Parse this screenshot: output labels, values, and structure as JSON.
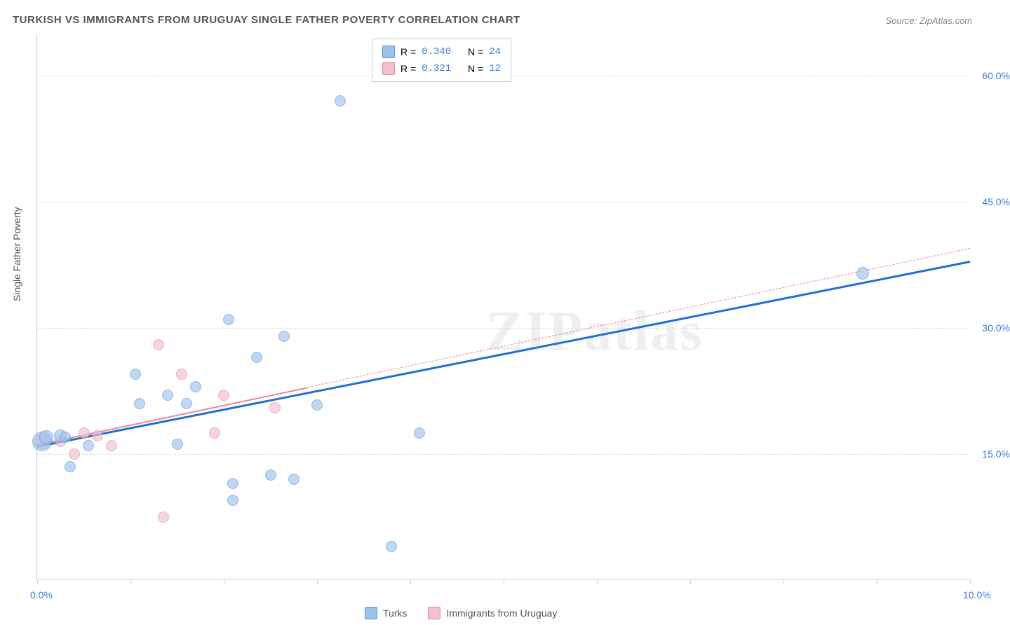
{
  "title": "TURKISH VS IMMIGRANTS FROM URUGUAY SINGLE FATHER POVERTY CORRELATION CHART",
  "source_label": "Source: ZipAtlas.com",
  "ylabel": "Single Father Poverty",
  "watermark_a": "ZIP",
  "watermark_b": "atlas",
  "legend_top": {
    "series1": {
      "r_label": "R =",
      "r": "0.340",
      "n_label": "N =",
      "n": "24"
    },
    "series2": {
      "r_label": "R =",
      "r": "0.321",
      "n_label": "N =",
      "n": "12"
    }
  },
  "legend_bottom": {
    "series1": "Turks",
    "series2": "Immigrants from Uruguay"
  },
  "chart": {
    "type": "scatter",
    "xlim": [
      0.0,
      10.0
    ],
    "ylim": [
      0.0,
      65.0
    ],
    "xticks": [
      0.0,
      1.0,
      2.0,
      3.0,
      4.0,
      5.0,
      6.0,
      7.0,
      8.0,
      9.0,
      10.0
    ],
    "xtick_labels": {
      "0": "0.0%",
      "10": "10.0%"
    },
    "yticks": [
      15.0,
      30.0,
      45.0,
      60.0
    ],
    "ytick_labels": [
      "15.0%",
      "30.0%",
      "45.0%",
      "60.0%"
    ],
    "grid_color": "#dddddd",
    "background": "#ffffff",
    "series": {
      "turks": {
        "fill": "#9cc3ec",
        "stroke": "#5a96d6",
        "opacity": 0.65,
        "radius_default": 8,
        "points": [
          {
            "x": 0.05,
            "y": 16.5,
            "r": 14
          },
          {
            "x": 0.1,
            "y": 17.0,
            "r": 10
          },
          {
            "x": 0.25,
            "y": 17.2,
            "r": 9
          },
          {
            "x": 0.3,
            "y": 17.0,
            "r": 8
          },
          {
            "x": 0.35,
            "y": 13.5,
            "r": 8
          },
          {
            "x": 0.55,
            "y": 16.0,
            "r": 8
          },
          {
            "x": 1.05,
            "y": 24.5,
            "r": 8
          },
          {
            "x": 1.1,
            "y": 21.0,
            "r": 8
          },
          {
            "x": 1.4,
            "y": 22.0,
            "r": 8
          },
          {
            "x": 1.5,
            "y": 16.2,
            "r": 8
          },
          {
            "x": 1.6,
            "y": 21.0,
            "r": 8
          },
          {
            "x": 1.7,
            "y": 23.0,
            "r": 8
          },
          {
            "x": 2.05,
            "y": 31.0,
            "r": 8
          },
          {
            "x": 2.1,
            "y": 11.5,
            "r": 8
          },
          {
            "x": 2.1,
            "y": 9.5,
            "r": 8
          },
          {
            "x": 2.35,
            "y": 26.5,
            "r": 8
          },
          {
            "x": 2.5,
            "y": 12.5,
            "r": 8
          },
          {
            "x": 2.65,
            "y": 29.0,
            "r": 8
          },
          {
            "x": 2.75,
            "y": 12.0,
            "r": 8
          },
          {
            "x": 3.0,
            "y": 20.8,
            "r": 8
          },
          {
            "x": 3.25,
            "y": 57.0,
            "r": 8
          },
          {
            "x": 3.8,
            "y": 4.0,
            "r": 8
          },
          {
            "x": 4.1,
            "y": 17.5,
            "r": 8
          },
          {
            "x": 8.85,
            "y": 36.5,
            "r": 9
          }
        ],
        "trend": {
          "x1": 0.0,
          "y1": 16.0,
          "x2": 10.0,
          "y2": 38.0,
          "color": "#1f6fd4",
          "width": 3,
          "dash": false
        }
      },
      "uruguay": {
        "fill": "#f4c0cb",
        "stroke": "#e8849d",
        "opacity": 0.65,
        "radius_default": 8,
        "points": [
          {
            "x": 0.05,
            "y": 16.5,
            "r": 11
          },
          {
            "x": 0.25,
            "y": 16.5,
            "r": 8
          },
          {
            "x": 0.4,
            "y": 15.0,
            "r": 8
          },
          {
            "x": 0.5,
            "y": 17.5,
            "r": 8
          },
          {
            "x": 0.65,
            "y": 17.2,
            "r": 8
          },
          {
            "x": 0.8,
            "y": 16.0,
            "r": 8
          },
          {
            "x": 1.3,
            "y": 28.0,
            "r": 8
          },
          {
            "x": 1.35,
            "y": 7.5,
            "r": 8
          },
          {
            "x": 1.55,
            "y": 24.5,
            "r": 8
          },
          {
            "x": 1.9,
            "y": 17.5,
            "r": 8
          },
          {
            "x": 2.0,
            "y": 22.0,
            "r": 8
          },
          {
            "x": 2.55,
            "y": 20.5,
            "r": 8
          }
        ],
        "trend_solid": {
          "x1": 0.0,
          "y1": 16.2,
          "x2": 2.9,
          "y2": 23.0,
          "color": "#e8849d",
          "width": 2.5,
          "dash": false
        },
        "trend_dash": {
          "x1": 2.9,
          "y1": 23.0,
          "x2": 10.0,
          "y2": 39.5,
          "color": "#e8849d",
          "width": 1,
          "dash": true
        }
      }
    }
  }
}
